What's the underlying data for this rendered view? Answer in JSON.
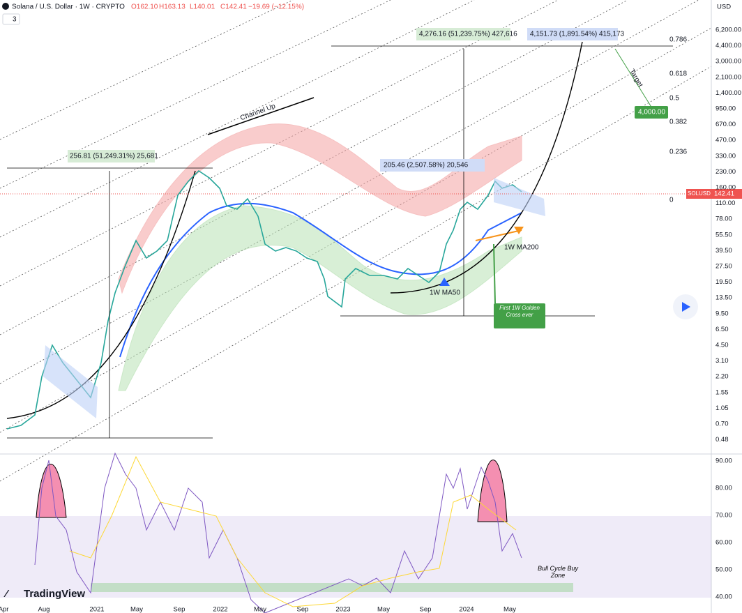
{
  "header": {
    "symbol": "Solana / U.S. Dollar · 1W · CRYPTO",
    "open": "O162.10",
    "high": "H163.13",
    "low": "L140.01",
    "close": "C142.41",
    "change": "−19.69 (−12.15%)",
    "indicators": "3",
    "currency": "USD"
  },
  "price_axis": [
    "6,200.00",
    "4,400.00",
    "3,000.00",
    "2,100.00",
    "1,400.00",
    "950.00",
    "670.00",
    "470.00",
    "330.00",
    "230.00",
    "160.00",
    "110.00",
    "78.00",
    "55.50",
    "39.50",
    "27.50",
    "19.50",
    "13.50",
    "9.50",
    "6.50",
    "4.50",
    "3.10",
    "2.20",
    "1.55",
    "1.05",
    "0.70",
    "0.48"
  ],
  "rsi_axis": [
    "90.00",
    "80.00",
    "70.00",
    "60.00",
    "50.00",
    "40.00"
  ],
  "time_axis": [
    "Apr",
    "Aug",
    "2021",
    "May",
    "Sep",
    "2022",
    "May",
    "Sep",
    "2023",
    "May",
    "Sep",
    "2024",
    "May"
  ],
  "price_tag": {
    "symbol": "SOLUSD",
    "price": "142.41"
  },
  "annotations": {
    "range1": "256.81 (51,249.31%) 25,681",
    "range2": "205.46 (2,507.58%) 20,546",
    "range3": "4,276.16 (51,239.75%) 427,616",
    "range4": "4,151.73 (1,891.54%) 415,173",
    "channel": "Channel Up",
    "target": "Target",
    "target_price": "4,000.00",
    "ma50": "1W MA50",
    "ma200": "1W MA200",
    "golden_cross": "First 1W Golden Cross ever",
    "buy_zone": "Bull Cycle Buy Zone",
    "logo": "TradingView"
  },
  "fib_levels": [
    "0.786",
    "0.618",
    "0.5",
    "0.382",
    "0.236",
    "0"
  ]
}
